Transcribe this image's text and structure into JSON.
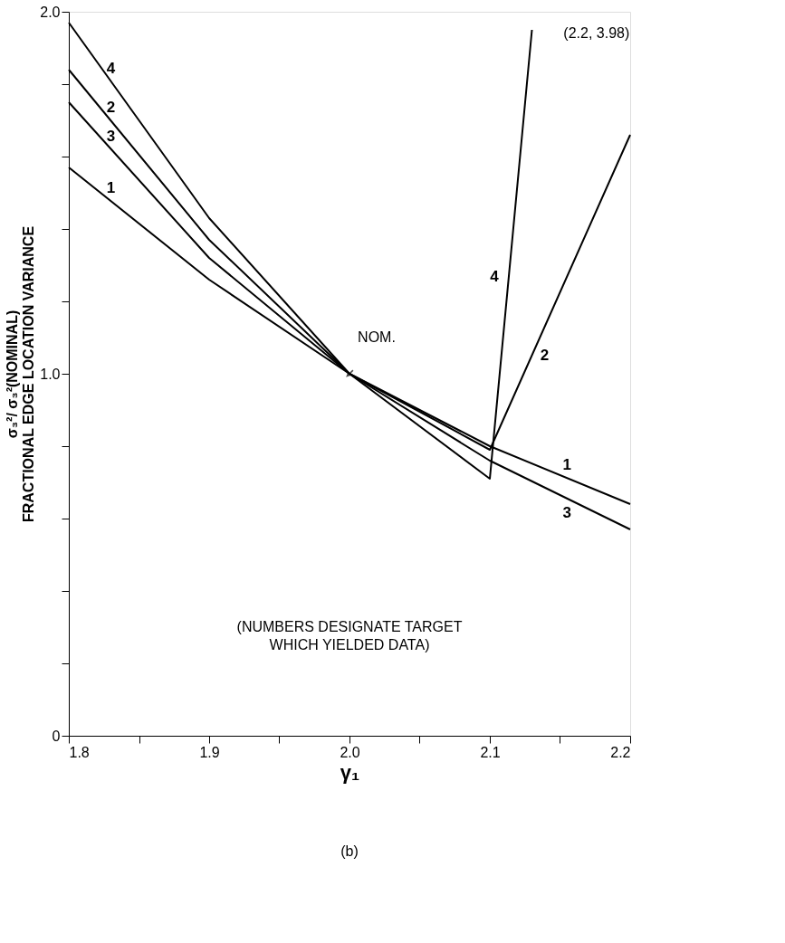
{
  "chart_data": {
    "type": "line",
    "xlabel": "γ₁",
    "ylabel": "σ₃²/ σ₃²(NOMINAL)\nFRACTIONAL EDGE LOCATION VARIANCE",
    "series": [
      {
        "name": "1",
        "color": "#000000",
        "x": [
          1.8,
          1.9,
          2.0,
          2.1,
          2.2
        ],
        "values": [
          1.57,
          1.26,
          1.0,
          0.8,
          0.64
        ]
      },
      {
        "name": "2",
        "color": "#000000",
        "x": [
          1.8,
          1.9,
          2.0,
          2.1,
          2.2
        ],
        "values": [
          1.84,
          1.37,
          1.0,
          0.79,
          1.66
        ]
      },
      {
        "name": "3",
        "color": "#000000",
        "x": [
          1.8,
          1.9,
          2.0,
          2.1,
          2.2
        ],
        "values": [
          1.75,
          1.32,
          1.0,
          0.76,
          0.57
        ]
      },
      {
        "name": "4",
        "color": "#000000",
        "x": [
          1.8,
          1.9,
          2.0,
          2.1,
          2.13
        ],
        "values": [
          1.97,
          1.43,
          1.0,
          0.71,
          1.95
        ]
      }
    ],
    "xlim": [
      1.8,
      2.2
    ],
    "xticks": [
      1.8,
      {
        "value": 1.85,
        "label": null
      },
      1.9,
      {
        "value": 1.95,
        "label": null
      },
      {
        "value": 2.0,
        "label": "2.0"
      },
      {
        "value": 2.05,
        "label": null
      },
      2.1,
      {
        "value": 2.15,
        "label": null
      },
      2.2
    ],
    "ylim": [
      0,
      2.0
    ],
    "yticks": [
      0,
      {
        "value": 0.2,
        "label": null
      },
      {
        "value": 0.4,
        "label": null
      },
      {
        "value": 0.6,
        "label": null
      },
      {
        "value": 0.8,
        "label": null
      },
      {
        "value": 1.0,
        "label": "1.0"
      },
      {
        "value": 1.2,
        "label": null
      },
      {
        "value": 1.4,
        "label": null
      },
      {
        "value": 1.6,
        "label": null
      },
      {
        "value": 1.8,
        "label": null
      },
      {
        "value": 2.0,
        "label": "2.0"
      }
    ],
    "annotations": [
      {
        "text": "NOM.",
        "x": 2.0,
        "y": 1.0
      },
      "(NUMBERS DESIGNATE TARGET\nWHICH YIELDED DATA)",
      "(2.2, 3.98)",
      "(b)"
    ],
    "grid": false,
    "marker": "none",
    "line_style": "solid"
  }
}
